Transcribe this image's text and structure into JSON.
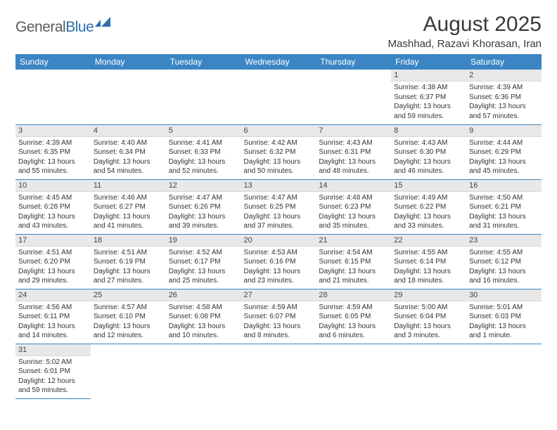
{
  "logo": {
    "part1": "General",
    "part2": "Blue"
  },
  "title": "August 2025",
  "location": "Mashhad, Razavi Khorasan, Iran",
  "colors": {
    "header_bg": "#3b85c4",
    "header_text": "#ffffff",
    "daybar_bg": "#e8e8e8",
    "border": "#3b85c4",
    "logo_gray": "#5a5a5a",
    "logo_blue": "#2f6fb0"
  },
  "weekdays": [
    "Sunday",
    "Monday",
    "Tuesday",
    "Wednesday",
    "Thursday",
    "Friday",
    "Saturday"
  ],
  "weeks": [
    [
      null,
      null,
      null,
      null,
      null,
      {
        "n": "1",
        "sr": "Sunrise: 4:38 AM",
        "ss": "Sunset: 6:37 PM",
        "d1": "Daylight: 13 hours",
        "d2": "and 59 minutes."
      },
      {
        "n": "2",
        "sr": "Sunrise: 4:39 AM",
        "ss": "Sunset: 6:36 PM",
        "d1": "Daylight: 13 hours",
        "d2": "and 57 minutes."
      }
    ],
    [
      {
        "n": "3",
        "sr": "Sunrise: 4:39 AM",
        "ss": "Sunset: 6:35 PM",
        "d1": "Daylight: 13 hours",
        "d2": "and 55 minutes."
      },
      {
        "n": "4",
        "sr": "Sunrise: 4:40 AM",
        "ss": "Sunset: 6:34 PM",
        "d1": "Daylight: 13 hours",
        "d2": "and 54 minutes."
      },
      {
        "n": "5",
        "sr": "Sunrise: 4:41 AM",
        "ss": "Sunset: 6:33 PM",
        "d1": "Daylight: 13 hours",
        "d2": "and 52 minutes."
      },
      {
        "n": "6",
        "sr": "Sunrise: 4:42 AM",
        "ss": "Sunset: 6:32 PM",
        "d1": "Daylight: 13 hours",
        "d2": "and 50 minutes."
      },
      {
        "n": "7",
        "sr": "Sunrise: 4:43 AM",
        "ss": "Sunset: 6:31 PM",
        "d1": "Daylight: 13 hours",
        "d2": "and 48 minutes."
      },
      {
        "n": "8",
        "sr": "Sunrise: 4:43 AM",
        "ss": "Sunset: 6:30 PM",
        "d1": "Daylight: 13 hours",
        "d2": "and 46 minutes."
      },
      {
        "n": "9",
        "sr": "Sunrise: 4:44 AM",
        "ss": "Sunset: 6:29 PM",
        "d1": "Daylight: 13 hours",
        "d2": "and 45 minutes."
      }
    ],
    [
      {
        "n": "10",
        "sr": "Sunrise: 4:45 AM",
        "ss": "Sunset: 6:28 PM",
        "d1": "Daylight: 13 hours",
        "d2": "and 43 minutes."
      },
      {
        "n": "11",
        "sr": "Sunrise: 4:46 AM",
        "ss": "Sunset: 6:27 PM",
        "d1": "Daylight: 13 hours",
        "d2": "and 41 minutes."
      },
      {
        "n": "12",
        "sr": "Sunrise: 4:47 AM",
        "ss": "Sunset: 6:26 PM",
        "d1": "Daylight: 13 hours",
        "d2": "and 39 minutes."
      },
      {
        "n": "13",
        "sr": "Sunrise: 4:47 AM",
        "ss": "Sunset: 6:25 PM",
        "d1": "Daylight: 13 hours",
        "d2": "and 37 minutes."
      },
      {
        "n": "14",
        "sr": "Sunrise: 4:48 AM",
        "ss": "Sunset: 6:23 PM",
        "d1": "Daylight: 13 hours",
        "d2": "and 35 minutes."
      },
      {
        "n": "15",
        "sr": "Sunrise: 4:49 AM",
        "ss": "Sunset: 6:22 PM",
        "d1": "Daylight: 13 hours",
        "d2": "and 33 minutes."
      },
      {
        "n": "16",
        "sr": "Sunrise: 4:50 AM",
        "ss": "Sunset: 6:21 PM",
        "d1": "Daylight: 13 hours",
        "d2": "and 31 minutes."
      }
    ],
    [
      {
        "n": "17",
        "sr": "Sunrise: 4:51 AM",
        "ss": "Sunset: 6:20 PM",
        "d1": "Daylight: 13 hours",
        "d2": "and 29 minutes."
      },
      {
        "n": "18",
        "sr": "Sunrise: 4:51 AM",
        "ss": "Sunset: 6:19 PM",
        "d1": "Daylight: 13 hours",
        "d2": "and 27 minutes."
      },
      {
        "n": "19",
        "sr": "Sunrise: 4:52 AM",
        "ss": "Sunset: 6:17 PM",
        "d1": "Daylight: 13 hours",
        "d2": "and 25 minutes."
      },
      {
        "n": "20",
        "sr": "Sunrise: 4:53 AM",
        "ss": "Sunset: 6:16 PM",
        "d1": "Daylight: 13 hours",
        "d2": "and 23 minutes."
      },
      {
        "n": "21",
        "sr": "Sunrise: 4:54 AM",
        "ss": "Sunset: 6:15 PM",
        "d1": "Daylight: 13 hours",
        "d2": "and 21 minutes."
      },
      {
        "n": "22",
        "sr": "Sunrise: 4:55 AM",
        "ss": "Sunset: 6:14 PM",
        "d1": "Daylight: 13 hours",
        "d2": "and 18 minutes."
      },
      {
        "n": "23",
        "sr": "Sunrise: 4:55 AM",
        "ss": "Sunset: 6:12 PM",
        "d1": "Daylight: 13 hours",
        "d2": "and 16 minutes."
      }
    ],
    [
      {
        "n": "24",
        "sr": "Sunrise: 4:56 AM",
        "ss": "Sunset: 6:11 PM",
        "d1": "Daylight: 13 hours",
        "d2": "and 14 minutes."
      },
      {
        "n": "25",
        "sr": "Sunrise: 4:57 AM",
        "ss": "Sunset: 6:10 PM",
        "d1": "Daylight: 13 hours",
        "d2": "and 12 minutes."
      },
      {
        "n": "26",
        "sr": "Sunrise: 4:58 AM",
        "ss": "Sunset: 6:08 PM",
        "d1": "Daylight: 13 hours",
        "d2": "and 10 minutes."
      },
      {
        "n": "27",
        "sr": "Sunrise: 4:59 AM",
        "ss": "Sunset: 6:07 PM",
        "d1": "Daylight: 13 hours",
        "d2": "and 8 minutes."
      },
      {
        "n": "28",
        "sr": "Sunrise: 4:59 AM",
        "ss": "Sunset: 6:05 PM",
        "d1": "Daylight: 13 hours",
        "d2": "and 6 minutes."
      },
      {
        "n": "29",
        "sr": "Sunrise: 5:00 AM",
        "ss": "Sunset: 6:04 PM",
        "d1": "Daylight: 13 hours",
        "d2": "and 3 minutes."
      },
      {
        "n": "30",
        "sr": "Sunrise: 5:01 AM",
        "ss": "Sunset: 6:03 PM",
        "d1": "Daylight: 13 hours",
        "d2": "and 1 minute."
      }
    ],
    [
      {
        "n": "31",
        "sr": "Sunrise: 5:02 AM",
        "ss": "Sunset: 6:01 PM",
        "d1": "Daylight: 12 hours",
        "d2": "and 59 minutes."
      },
      null,
      null,
      null,
      null,
      null,
      null
    ]
  ]
}
